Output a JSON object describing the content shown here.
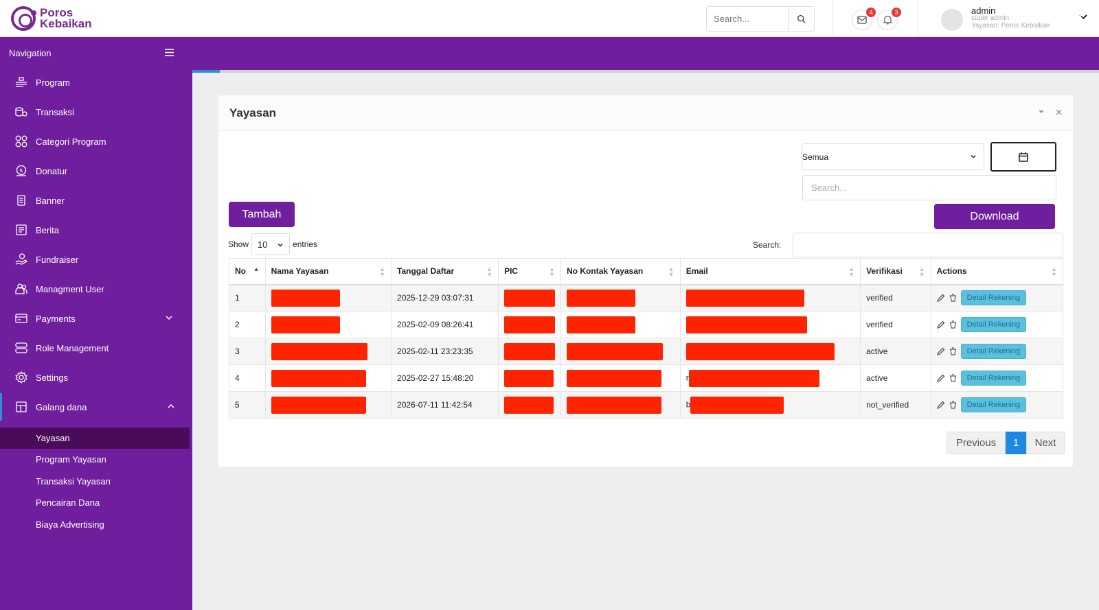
{
  "header": {
    "brand_line1": "Poros",
    "brand_line2": "Kebaikan",
    "search_placeholder": "Search...",
    "mail_count": "4",
    "notif_count": "3",
    "user_name": "admin",
    "user_role": "super admin",
    "user_org": "Yayasan: Poros Kebaikan"
  },
  "sidebar": {
    "title": "Navigation",
    "items": [
      {
        "label": "Program",
        "icon": "program-icon"
      },
      {
        "label": "Transaksi",
        "icon": "transaction-icon"
      },
      {
        "label": "Categori Program",
        "icon": "category-icon"
      },
      {
        "label": "Donatur",
        "icon": "donor-icon"
      },
      {
        "label": "Banner",
        "icon": "banner-icon"
      },
      {
        "label": "Berita",
        "icon": "news-icon"
      },
      {
        "label": "Fundraiser",
        "icon": "fundraiser-icon"
      },
      {
        "label": "Managment User",
        "icon": "users-icon"
      },
      {
        "label": "Payments",
        "icon": "payments-icon"
      },
      {
        "label": "Role Management",
        "icon": "role-icon"
      },
      {
        "label": "Settings",
        "icon": "settings-icon"
      },
      {
        "label": "Galang dana",
        "icon": "galang-dana-icon"
      }
    ],
    "subitems": [
      {
        "label": "Yayasan"
      },
      {
        "label": "Program Yayasan"
      },
      {
        "label": "Transaksi Yayasan"
      },
      {
        "label": "Pencairan Dana"
      },
      {
        "label": "Biaya Advertising"
      }
    ]
  },
  "page": {
    "load_progress": 0.03,
    "card_title": "Yayasan",
    "filter_value": "Semua",
    "search_placeholder": "Search...",
    "add_label": "Tambah",
    "download_label": "Download",
    "show_label": "Show",
    "entries_value": "10",
    "entries_label": "entries",
    "search_label": "Search:"
  },
  "table": {
    "columns": [
      "No",
      "Nama Yayasan",
      "Tanggal Daftar",
      "PIC",
      "No Kontak Yayasan",
      "Email",
      "Verifikasi",
      "Actions"
    ],
    "rows": [
      {
        "no": "1",
        "tanggal": "2025-12-29 03:07:31",
        "verifikasi": "verified",
        "email_prefix": ""
      },
      {
        "no": "2",
        "tanggal": "2025-02-09 08:26:41",
        "verifikasi": "verified",
        "email_prefix": ""
      },
      {
        "no": "3",
        "tanggal": "2025-02-11 23:23:35",
        "verifikasi": "active",
        "email_prefix": ""
      },
      {
        "no": "4",
        "tanggal": "2025-02-27 15:48:20",
        "verifikasi": "active",
        "email_prefix": "r"
      },
      {
        "no": "5",
        "tanggal": "2026-07-11 11:42:54",
        "verifikasi": "not_verified",
        "email_prefix": "b"
      }
    ],
    "detail_label": "Detail Rekening"
  },
  "pagination": {
    "previous": "Previous",
    "current": "1",
    "next": "Next"
  },
  "colors": {
    "brand": "#6f1f9e",
    "active_sub": "#4a0b58",
    "accent": "#2b91d8",
    "redaction": "#ff2400"
  }
}
